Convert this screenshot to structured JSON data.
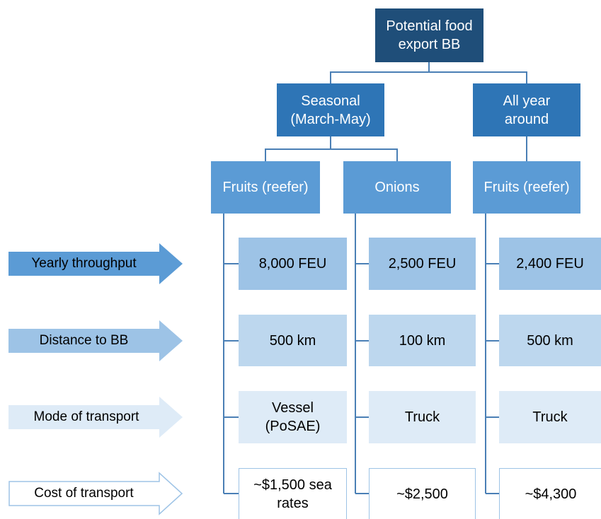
{
  "root": {
    "label": "Potential food export BB"
  },
  "branches": [
    {
      "label": "Seasonal (March-May)",
      "children": [
        {
          "label": "Fruits (reefer)"
        },
        {
          "label": "Onions"
        }
      ]
    },
    {
      "label": "All year around",
      "children": [
        {
          "label": "Fruits (reefer)"
        }
      ]
    }
  ],
  "rows": [
    {
      "label": "Yearly throughput",
      "cells": [
        "8,000 FEU",
        "2,500 FEU",
        "2,400 FEU"
      ]
    },
    {
      "label": "Distance to BB",
      "cells": [
        "500 km",
        "100 km",
        "500 km"
      ]
    },
    {
      "label": "Mode of transport",
      "cells": [
        "Vessel (PoSAE)",
        "Truck",
        "Truck"
      ]
    },
    {
      "label": "Cost of transport",
      "cells": [
        "~$1,500 sea rates",
        "~$2,500",
        "~$4,300"
      ]
    }
  ]
}
